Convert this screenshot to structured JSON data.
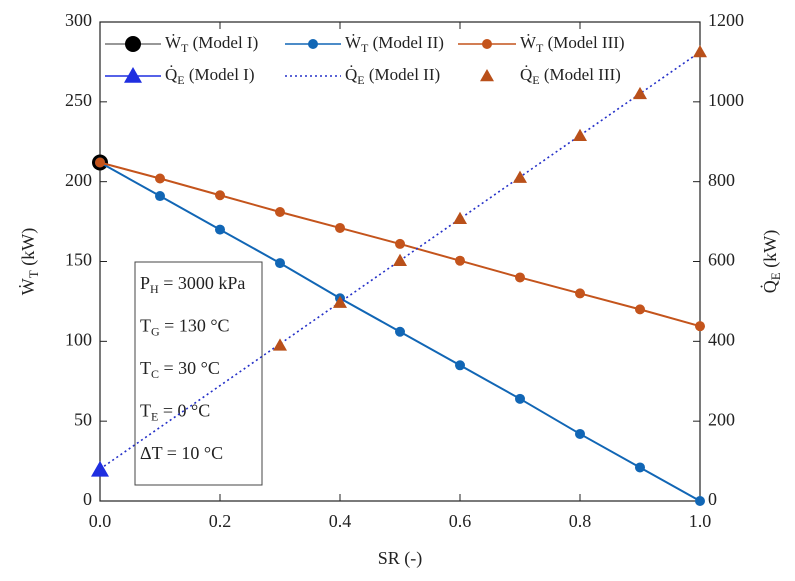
{
  "chart_data": {
    "type": "line",
    "x_label": "SR (-)",
    "y_label": "ẆT (kW)",
    "y2_label": "Q̇E (kW)",
    "xlim": [
      0,
      1
    ],
    "xticks": [
      {
        "value": 0,
        "label": "0.0"
      },
      0.2,
      0.4,
      0.6,
      0.8,
      {
        "value": 1,
        "label": "1.0"
      }
    ],
    "ylim": [
      0,
      300
    ],
    "yticks": [
      0,
      50,
      100,
      150,
      200,
      250,
      300
    ],
    "y2lim": [
      0,
      1200
    ],
    "y2ticks": [
      0,
      200,
      400,
      600,
      800,
      1000,
      1200
    ],
    "annotations": [
      "PH = 3000 kPa",
      "TG = 130 °C",
      "TC = 30 °C",
      "TE = 0 °C",
      "ΔT = 10 °C"
    ],
    "series": [
      {
        "name": "ẆT (Model I)",
        "color": "#000000",
        "marker": "circle",
        "line": "solid",
        "axis": "y",
        "x": [
          0
        ],
        "values": [
          212
        ]
      },
      {
        "name": "ẆT (Model II)",
        "color": "#1166b5",
        "marker": "circle",
        "line": "solid",
        "axis": "y",
        "x": [
          0,
          0.1,
          0.2,
          0.3,
          0.4,
          0.5,
          0.6,
          0.7,
          0.8,
          0.9,
          1
        ],
        "values": [
          212,
          191,
          170,
          149,
          127,
          106,
          85,
          64,
          42,
          21,
          0
        ]
      },
      {
        "name": "ẆT (Model III)",
        "color": "#c4541c",
        "marker": "circle",
        "line": "solid",
        "axis": "y",
        "x": [
          0,
          0.1,
          0.2,
          0.3,
          0.4,
          0.5,
          0.6,
          0.7,
          0.8,
          0.9,
          1
        ],
        "values": [
          212,
          202,
          191.5,
          181,
          171,
          161,
          150.5,
          140,
          130,
          120,
          109.5
        ]
      },
      {
        "name": "Q̇E (Model I)",
        "color": "#1f2ee0",
        "marker": "triangle",
        "line": "solid",
        "axis": "y2",
        "x": [
          0
        ],
        "values": [
          78
        ]
      },
      {
        "name": "Q̇E (Model II)",
        "color": "#2430c8",
        "marker": "none",
        "line": "dotted",
        "axis": "y2",
        "x": [
          0,
          0.1,
          0.2,
          0.3,
          0.4,
          0.5,
          0.6,
          0.7,
          0.8,
          0.9,
          1
        ],
        "values": [
          80,
          184.5,
          289,
          393.5,
          498,
          602.5,
          707,
          811.5,
          916,
          1020.5,
          1125
        ]
      },
      {
        "name": "Q̇E (Model III)",
        "color": "#b9501a",
        "marker": "triangle",
        "line": "none",
        "axis": "y2",
        "x": [
          0.3,
          0.4,
          0.5,
          0.6,
          0.7,
          0.8,
          0.9,
          1
        ],
        "values": [
          390,
          497,
          602,
          707,
          810,
          915,
          1020,
          1125
        ]
      }
    ]
  }
}
